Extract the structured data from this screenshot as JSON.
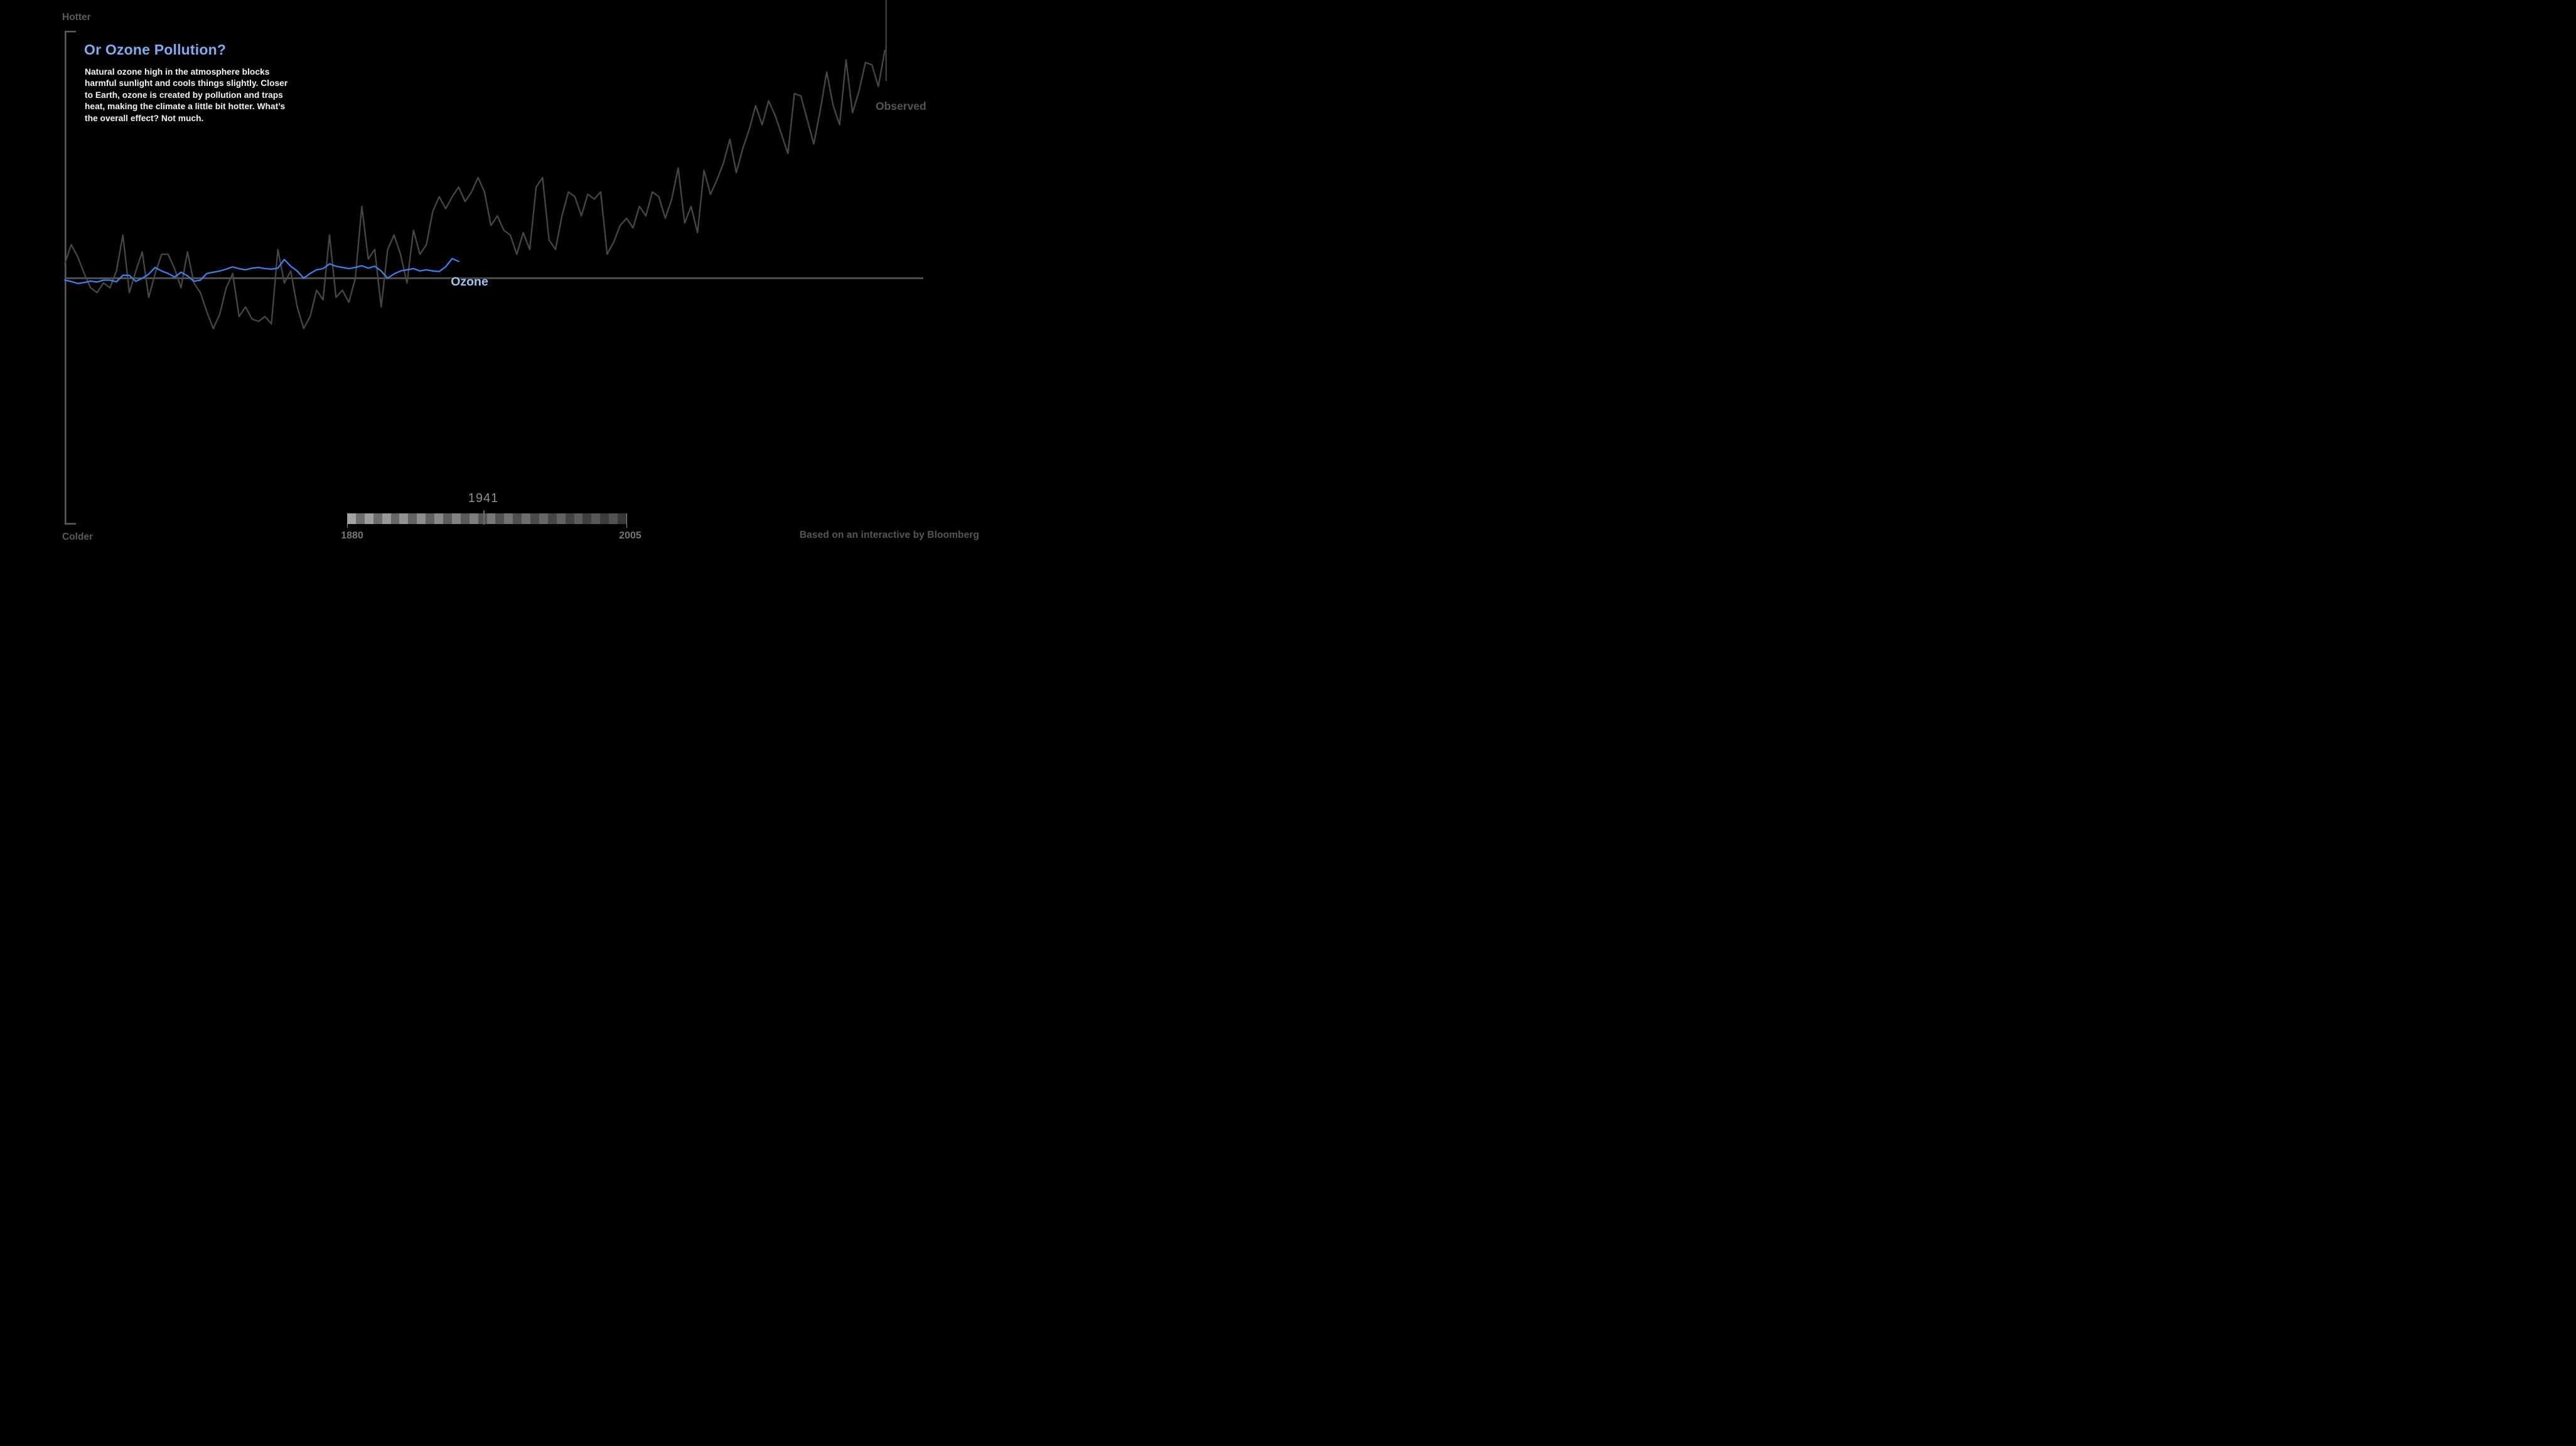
{
  "page": {
    "background": "#000000"
  },
  "axis": {
    "hotter": "Hotter",
    "colder": "Colder"
  },
  "annotation": {
    "title": "Or Ozone Pollution?",
    "body": "Natural ozone high in the atmosphere blocks\nharmful sunlight and cools things slightly.  Closer\nto Earth, ozone is created by pollution and traps\nheat, making the climate a little bit hotter.  What’s\nthe overall effect?  Not much."
  },
  "timeline": {
    "current_year": "1941",
    "start_year": "1880",
    "end_year": "2005",
    "segment_count": 32
  },
  "credit": "Based on an interactive by Bloomberg",
  "colors": {
    "background": "#000000",
    "title_blue": "#7cadee",
    "ozone_line": "#3c80e8",
    "ozone_label_blue": "#9cc4f1",
    "cursor_blue": "#82aeec",
    "observed_line": "#474747",
    "observed_label": "#545454",
    "baseline_gray": "#575757",
    "baseline_highlight": "#9a9a9a",
    "bracket_gray": "#5a5a5a",
    "body_text": "#f4f4f4",
    "hotter_colder_gray": "#5a5a5a",
    "year_readout_gray": "#8f8f8f",
    "range_label_gray": "#767676",
    "credit_gray": "#565656",
    "scrub_handle_gray": "#6e6e6e",
    "scrub_end_tick_gray": "#949494",
    "stripe_light_start": "#a3a3a3",
    "stripe_light_end": "#4f4f4f",
    "stripe_dark_start": "#707070",
    "stripe_dark_end": "#383838",
    "end_marker_gray": "#545454"
  },
  "chart_data": {
    "type": "line",
    "title": "Or Ozone Pollution?",
    "xlabel": "",
    "ylabel": "Temperature anomaly (Hotter / Colder)",
    "x_axis": {
      "start": 1880,
      "end": 2005,
      "tick_labels": [
        "1880",
        "2005"
      ]
    },
    "y_axis": {
      "baseline": 0,
      "ylim": [
        -0.35,
        1.16
      ],
      "gridlines": false
    },
    "cursor_year": 1941,
    "legend_position": "inline-right",
    "series": [
      {
        "name": "Observed",
        "color": "#474747",
        "start_year": 1880,
        "end_year": 2007,
        "values": [
          0.06,
          0.14,
          0.09,
          0.02,
          -0.04,
          -0.06,
          -0.02,
          -0.04,
          0.03,
          0.18,
          -0.06,
          0.03,
          0.11,
          -0.08,
          0.02,
          0.1,
          0.1,
          0.04,
          -0.04,
          0.11,
          -0.02,
          -0.06,
          -0.14,
          -0.21,
          -0.15,
          -0.04,
          0.02,
          -0.16,
          -0.12,
          -0.17,
          -0.18,
          -0.16,
          -0.19,
          0.12,
          -0.02,
          0.03,
          -0.12,
          -0.21,
          -0.16,
          -0.05,
          -0.09,
          0.18,
          -0.08,
          -0.05,
          -0.1,
          0.0,
          0.3,
          0.08,
          0.12,
          -0.12,
          0.12,
          0.18,
          0.1,
          -0.02,
          0.2,
          0.1,
          0.14,
          0.28,
          0.34,
          0.29,
          0.34,
          0.38,
          0.32,
          0.36,
          0.42,
          0.36,
          0.22,
          0.26,
          0.2,
          0.18,
          0.1,
          0.19,
          0.12,
          0.38,
          0.42,
          0.16,
          0.12,
          0.26,
          0.36,
          0.34,
          0.26,
          0.35,
          0.33,
          0.36,
          0.1,
          0.15,
          0.22,
          0.25,
          0.21,
          0.3,
          0.26,
          0.36,
          0.34,
          0.25,
          0.33,
          0.46,
          0.23,
          0.3,
          0.19,
          0.45,
          0.35,
          0.41,
          0.48,
          0.58,
          0.44,
          0.54,
          0.62,
          0.72,
          0.64,
          0.74,
          0.68,
          0.6,
          0.52,
          0.77,
          0.76,
          0.66,
          0.56,
          0.7,
          0.86,
          0.72,
          0.64,
          0.91,
          0.69,
          0.78,
          0.9,
          0.89,
          0.8,
          0.95
        ]
      },
      {
        "name": "Ozone",
        "color": "#3c80e8",
        "start_year": 1880,
        "end_year": 1941,
        "values": [
          -0.008,
          -0.014,
          -0.022,
          -0.018,
          -0.012,
          -0.016,
          -0.008,
          -0.008,
          -0.015,
          0.012,
          0.012,
          -0.013,
          0.0,
          0.017,
          0.045,
          0.03,
          0.02,
          0.005,
          0.025,
          0.01,
          -0.013,
          -0.008,
          0.02,
          0.025,
          0.03,
          0.038,
          0.047,
          0.04,
          0.035,
          0.042,
          0.045,
          0.04,
          0.038,
          0.042,
          0.078,
          0.05,
          0.03,
          0.0,
          0.02,
          0.035,
          0.04,
          0.06,
          0.05,
          0.045,
          0.04,
          0.045,
          0.052,
          0.042,
          0.05,
          0.03,
          0.0,
          0.018,
          0.03,
          0.035,
          0.04,
          0.03,
          0.035,
          0.03,
          0.028,
          0.048,
          0.082,
          0.07
        ]
      }
    ]
  }
}
